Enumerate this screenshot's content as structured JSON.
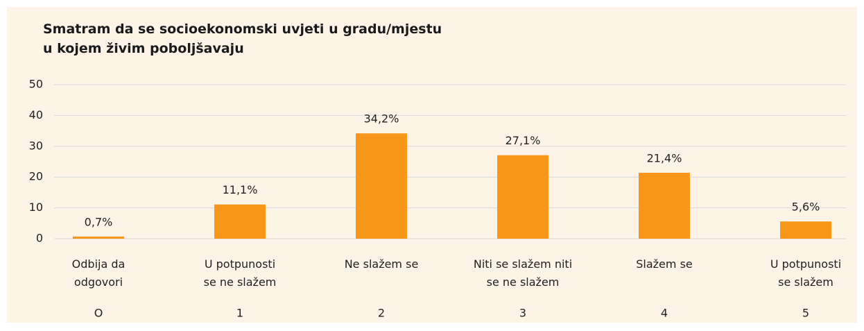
{
  "chart_data": {
    "type": "bar",
    "title": "Smatram da se socioekonomski uvjeti  u gradu/mjestu\nu kojem živim poboljšavaju",
    "categories": [
      "Odbija da\nodgovori",
      "U potpunosti\nse ne slažem",
      "Ne slažem se",
      "Niti se slažem niti\nse ne slažem",
      "Slažem se",
      "U potpunosti\nse slažem"
    ],
    "codes": [
      "O",
      "1",
      "2",
      "3",
      "4",
      "5"
    ],
    "values": [
      0.7,
      11.1,
      34.2,
      27.1,
      21.4,
      5.6
    ],
    "value_labels": [
      "0,7%",
      "11,1%",
      "34,2%",
      "27,1%",
      "21,4%",
      "5,6%"
    ],
    "color": "#f7981d",
    "ylim": [
      0,
      50
    ],
    "yticks": [
      0,
      10,
      20,
      30,
      40,
      50
    ],
    "grid": true
  }
}
